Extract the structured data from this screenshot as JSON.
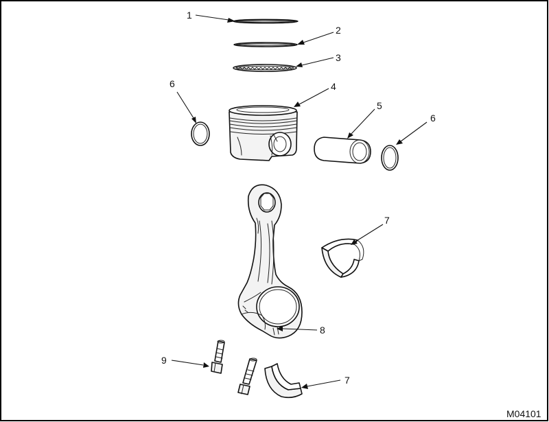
{
  "figure_id": "M04101",
  "border_color": "#000000",
  "parts": [
    {
      "number": "1",
      "depicts": "piston ring"
    },
    {
      "number": "2",
      "depicts": "piston ring"
    },
    {
      "number": "3",
      "depicts": "oil control ring"
    },
    {
      "number": "4",
      "depicts": "piston"
    },
    {
      "number": "5",
      "depicts": "piston pin"
    },
    {
      "number": "6",
      "depicts": "snap ring"
    },
    {
      "number": "7",
      "depicts": "bearing shell"
    },
    {
      "number": "8",
      "depicts": "connecting rod"
    },
    {
      "number": "9",
      "depicts": "bolt"
    }
  ],
  "callouts": {
    "c1": "1",
    "c2": "2",
    "c3": "3",
    "c4": "4",
    "c5": "5",
    "c6_left": "6",
    "c6_right": "6",
    "c7_upper": "7",
    "c7_lower": "7",
    "c8": "8",
    "c9": "9"
  }
}
